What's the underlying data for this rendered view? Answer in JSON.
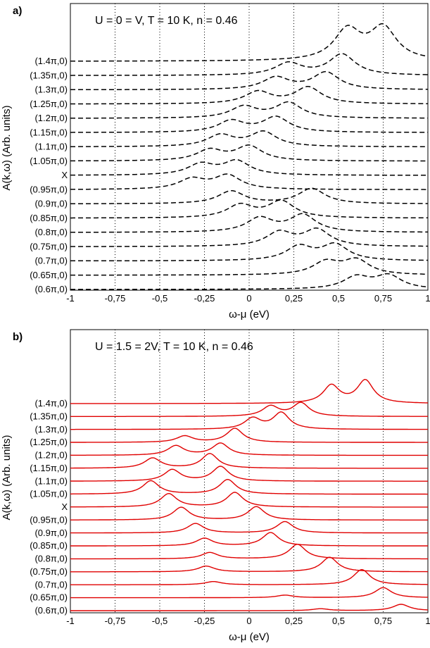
{
  "chart_data": [
    {
      "panel_label": "a)",
      "type": "line",
      "title": "U = 0 = V, T = 10 K, n = 0.46",
      "xlabel": "ω-μ (eV)",
      "ylabel": "A(k,ω) (Arb. units)",
      "xlim": [
        -1,
        1
      ],
      "xticks": [
        "-1",
        "-0,75",
        "-0,5",
        "-0,25",
        "0",
        "0,25",
        "0,5",
        "0,75",
        "1"
      ],
      "x_tick_values": [
        -1,
        -0.75,
        -0.5,
        -0.25,
        0,
        0.25,
        0.5,
        0.75,
        1
      ],
      "vertical_dotted_lines_at": [
        -0.75,
        -0.5,
        -0.25,
        0,
        0.25,
        0.5,
        0.75
      ],
      "line_color": "#000000",
      "line_style": "dashed",
      "y_tick_labels": [
        "(1.4π,0)",
        "(1.35π,0)",
        "(1.3π,0)",
        "(1.25π,0)",
        "(1.2π,0)",
        "(1.15π,0)",
        "(1.1π,0)",
        "(1.05π,0)",
        "X",
        "(0.95π,0)",
        "(0.9π,0)",
        "(0.85π,0)",
        "(0.8π,0)",
        "(0.75π,0)",
        "(0.7π,0)",
        "(0.65π,0)",
        "(0.6π,0)"
      ],
      "series_peaks": [
        [
          [
            0.55,
            4.8
          ],
          [
            0.75,
            5.1
          ]
        ],
        [
          [
            0.22,
            1.9
          ],
          [
            0.52,
            3.3
          ]
        ],
        [
          [
            0.15,
            1.9
          ],
          [
            0.43,
            2.7
          ]
        ],
        [
          [
            0.05,
            1.9
          ],
          [
            0.33,
            2.6
          ]
        ],
        [
          [
            -0.03,
            1.8
          ],
          [
            0.22,
            2.4
          ]
        ],
        [
          [
            -0.1,
            1.8
          ],
          [
            0.15,
            2.4
          ]
        ],
        [
          [
            -0.16,
            1.8
          ],
          [
            0.08,
            2.3
          ]
        ],
        [
          [
            -0.22,
            1.7
          ],
          [
            0.0,
            2.3
          ]
        ],
        [
          [
            -0.27,
            1.7
          ],
          [
            -0.07,
            2.2
          ]
        ],
        [
          [
            -0.32,
            1.6
          ],
          [
            -0.12,
            2.2
          ]
        ],
        [
          [
            -0.1,
            2.0
          ],
          [
            0.35,
            2.4
          ]
        ],
        [
          [
            -0.05,
            2.0
          ],
          [
            0.18,
            2.6
          ]
        ],
        [
          [
            0.06,
            2.2
          ],
          [
            0.3,
            2.7
          ]
        ],
        [
          [
            0.17,
            2.2
          ],
          [
            0.38,
            2.6
          ]
        ],
        [
          [
            0.28,
            2.2
          ],
          [
            0.48,
            2.5
          ]
        ],
        [
          [
            0.43,
            2.0
          ],
          [
            0.6,
            2.3
          ]
        ],
        [
          [
            0.6,
            1.9
          ],
          [
            0.78,
            2.1
          ]
        ]
      ]
    },
    {
      "panel_label": "b)",
      "type": "line",
      "title": "U = 1.5 = 2V, T = 10 K, n = 0.46",
      "xlabel": "ω-μ (eV)",
      "ylabel": "A(k,ω) (Arb. units)",
      "xlim": [
        -1,
        1
      ],
      "xticks": [
        "-1",
        "-0,75",
        "-0,5",
        "-0,25",
        "0",
        "0,25",
        "0,5",
        "0,75",
        "1"
      ],
      "x_tick_values": [
        -1,
        -0.75,
        -0.5,
        -0.25,
        0,
        0.25,
        0.5,
        0.75,
        1
      ],
      "vertical_dotted_lines_at": [
        -0.75,
        -0.5,
        -0.25,
        0,
        0.25,
        0.5,
        0.75
      ],
      "line_color": "#e00000",
      "line_style": "solid",
      "y_tick_labels": [
        "(1.4π,0)",
        "(1.35π,0)",
        "(1.3π,0)",
        "(1.25π,0)",
        "(1.2π,0)",
        "(1.15π,0)",
        "(1.1π,0)",
        "(1.05π,0)",
        "X",
        "(0.95π,0)",
        "(0.9π,0)",
        "(0.85π,0)",
        "(0.8π,0)",
        "(0.75π,0)",
        "(0.7π,0)",
        "(0.65π,0)",
        "(0.6π,0)"
      ],
      "series_peaks": [
        [
          [
            0.46,
            2.8
          ],
          [
            0.65,
            3.6
          ]
        ],
        [
          [
            0.12,
            1.6
          ],
          [
            0.29,
            2.1
          ]
        ],
        [
          [
            0.02,
            1.7
          ],
          [
            0.18,
            2.6
          ]
        ],
        [
          [
            -0.36,
            1.0
          ],
          [
            -0.08,
            2.2
          ]
        ],
        [
          [
            -0.41,
            1.5
          ],
          [
            -0.16,
            1.9
          ]
        ],
        [
          [
            -0.54,
            1.6
          ],
          [
            -0.22,
            2.3
          ]
        ],
        [
          [
            -0.43,
            1.8
          ],
          [
            -0.16,
            2.3
          ]
        ],
        [
          [
            -0.55,
            2.1
          ],
          [
            -0.12,
            2.3
          ]
        ],
        [
          [
            -0.45,
            2.1
          ],
          [
            -0.08,
            2.3
          ]
        ],
        [
          [
            -0.38,
            2.0
          ],
          [
            0.04,
            2.1
          ]
        ],
        [
          [
            -0.3,
            1.5
          ],
          [
            0.2,
            1.8
          ]
        ],
        [
          [
            -0.25,
            1.2
          ],
          [
            0.12,
            2.1
          ]
        ],
        [
          [
            -0.22,
            1.0
          ],
          [
            0.27,
            2.3
          ]
        ],
        [
          [
            -0.24,
            0.9
          ],
          [
            0.45,
            2.3
          ]
        ],
        [
          [
            -0.2,
            0.5
          ],
          [
            0.63,
            2.4
          ]
        ],
        [
          [
            0.2,
            0.4
          ],
          [
            0.75,
            1.6
          ]
        ],
        [
          [
            0.4,
            0.3
          ],
          [
            0.85,
            1.0
          ]
        ]
      ]
    }
  ]
}
